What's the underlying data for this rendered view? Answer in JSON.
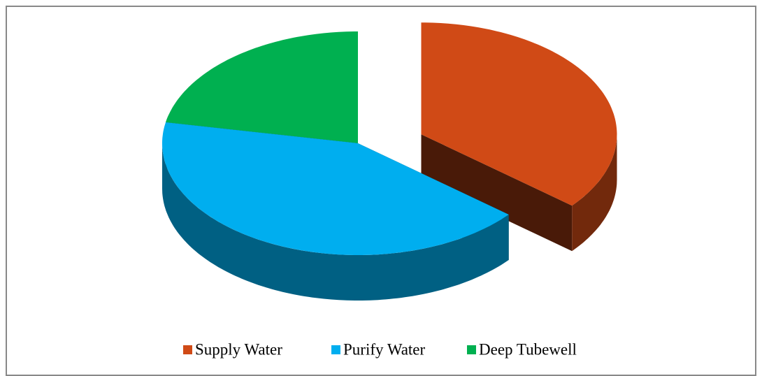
{
  "chart_data": {
    "type": "pie",
    "style": "3d-exploded",
    "categories": [
      "Supply Water",
      "Purify Water",
      "Deep Tubewell"
    ],
    "values": [
      36,
      42,
      22
    ],
    "colors": [
      "#d04a16",
      "#00aeef",
      "#00b050"
    ],
    "exploded": [
      true,
      false,
      false
    ],
    "legend": "bottom"
  }
}
